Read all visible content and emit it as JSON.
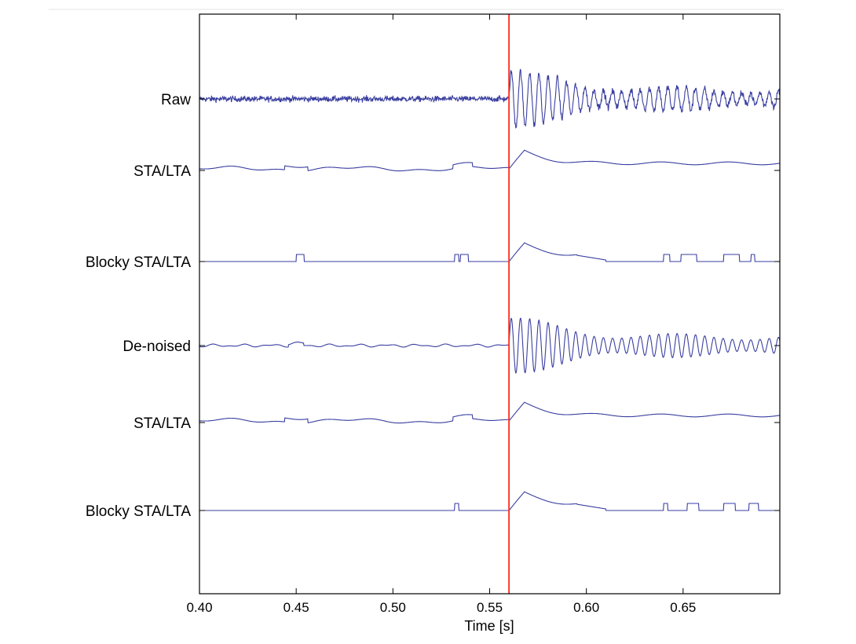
{
  "chart_data": {
    "type": "line",
    "xlabel": "Time [s]",
    "ylabel": "",
    "title": "",
    "xlim": [
      0.4,
      0.7
    ],
    "x_ticks": [
      {
        "value": 0.4,
        "label": "0.40"
      },
      {
        "value": 0.45,
        "label": "0.45"
      },
      {
        "value": 0.5,
        "label": "0.50"
      },
      {
        "value": 0.55,
        "label": "0.55"
      },
      {
        "value": 0.6,
        "label": "0.60"
      },
      {
        "value": 0.65,
        "label": "0.65"
      }
    ],
    "grid": false,
    "onset_marker": {
      "x": 0.56,
      "color": "#ff2a1a"
    },
    "trace_color": "#3a3fa0",
    "series": [
      {
        "name": "Raw",
        "kind": "raw-waveform"
      },
      {
        "name": "STA/LTA",
        "kind": "sta-lta"
      },
      {
        "name": "Blocky STA/LTA",
        "kind": "blocky-sta-lta",
        "blocks": [
          [
            0.45,
            0.454
          ],
          [
            0.532,
            0.534
          ],
          [
            0.535,
            0.539
          ],
          [
            0.64,
            0.643
          ],
          [
            0.649,
            0.657
          ],
          [
            0.671,
            0.679
          ],
          [
            0.685,
            0.687
          ]
        ]
      },
      {
        "name": "De-noised",
        "kind": "denoised-waveform"
      },
      {
        "name": "STA/LTA",
        "kind": "sta-lta"
      },
      {
        "name": "Blocky STA/LTA",
        "kind": "blocky-sta-lta",
        "blocks": [
          [
            0.532,
            0.534
          ],
          [
            0.64,
            0.642
          ],
          [
            0.652,
            0.658
          ],
          [
            0.671,
            0.677
          ],
          [
            0.684,
            0.689
          ]
        ]
      }
    ]
  }
}
